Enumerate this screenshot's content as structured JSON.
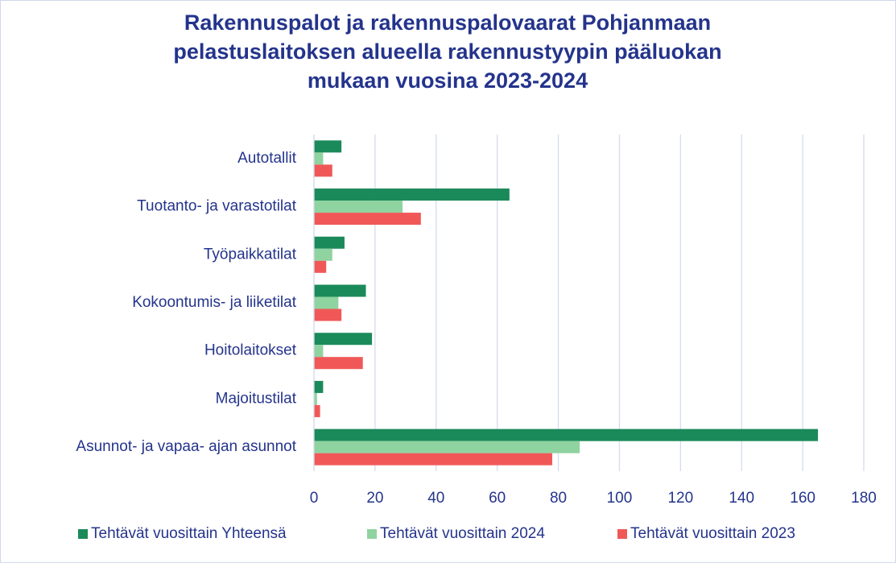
{
  "chart_data": {
    "type": "bar",
    "orientation": "horizontal",
    "title": [
      "Rakennuspalot ja rakennuspalovaarat Pohjanmaan",
      "pelastuslaitoksen alueella rakennustyypin pääluokan",
      "mukaan vuosina 2023-2024"
    ],
    "categories": [
      "Autotallit",
      "Tuotanto- ja varastotilat",
      "Työpaikkatilat",
      "Kokoontumis- ja liiketilat",
      "Hoitolaitokset",
      "Majoitustilat",
      "Asunnot- ja vapaa- ajan asunnot"
    ],
    "series": [
      {
        "name": "Tehtävät vuosittain Yhteensä",
        "color": "#1b8a5a",
        "values": [
          9,
          64,
          10,
          17,
          19,
          3,
          165
        ]
      },
      {
        "name": "Tehtävät vuosittain 2024",
        "color": "#8fd3a0",
        "values": [
          3,
          29,
          6,
          8,
          3,
          1,
          87
        ]
      },
      {
        "name": "Tehtävät vuosittain 2023",
        "color": "#f05858",
        "values": [
          6,
          35,
          4,
          9,
          16,
          2,
          78
        ]
      }
    ],
    "xlim": [
      0,
      180
    ],
    "xticks": [
      0,
      20,
      40,
      60,
      80,
      100,
      120,
      140,
      160,
      180
    ],
    "grid": true,
    "legend": "bottom"
  }
}
